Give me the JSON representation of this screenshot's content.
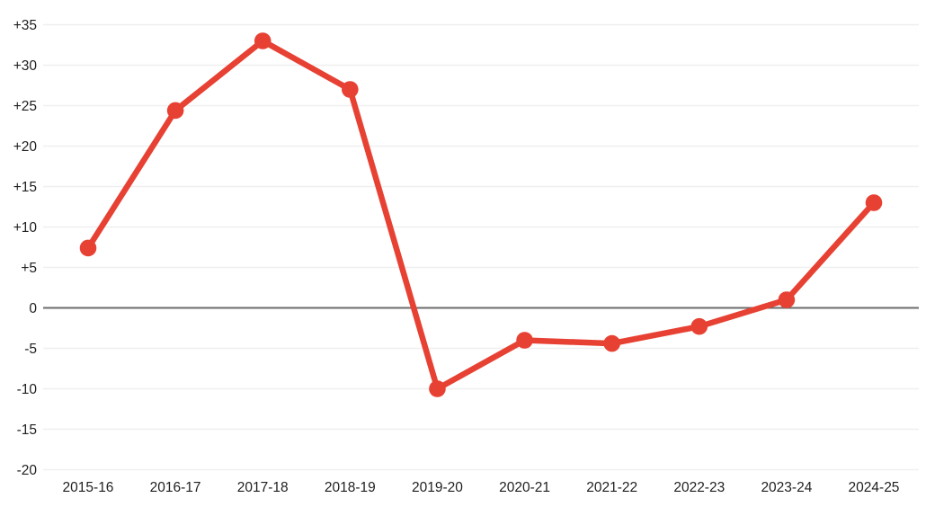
{
  "chart_data": {
    "type": "line",
    "categories": [
      "2015-16",
      "2016-17",
      "2017-18",
      "2018-19",
      "2019-20",
      "2020-21",
      "2021-22",
      "2022-23",
      "2023-24",
      "2024-25"
    ],
    "values": [
      7.4,
      24.4,
      33,
      27,
      -10,
      -4,
      -4.4,
      -2.3,
      1,
      13
    ],
    "series": [
      {
        "name": "series-1",
        "values": [
          7.4,
          24.4,
          33,
          27,
          -10,
          -4,
          -4.4,
          -2.3,
          1,
          13
        ]
      }
    ],
    "title": "",
    "xlabel": "",
    "ylabel": "",
    "ylim": [
      -20,
      35
    ],
    "ytick_step": 5,
    "ytick_labels": [
      "-20",
      "-15",
      "-10",
      "-5",
      "0",
      "+5",
      "+10",
      "+15",
      "+20",
      "+25",
      "+30",
      "+35"
    ],
    "grid": true,
    "legend_position": "none",
    "colors": {
      "line": "#e74133",
      "marker": "#e74133",
      "grid": "#efefef",
      "zero_line": "#6b6b6b",
      "tick_text": "#1f1f1f",
      "background": "#ffffff"
    }
  }
}
